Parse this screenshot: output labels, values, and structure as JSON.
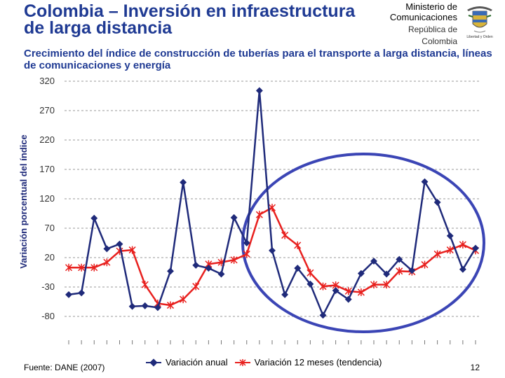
{
  "header": {
    "title": "Colombia – Inversión en infraestructura de larga distancia",
    "ministry_line1": "Ministerio de",
    "ministry_line2": "Comunicaciones",
    "ministry_sub1": "República de",
    "ministry_sub2": "Colombia",
    "crest_caption": "Libertad y Orden"
  },
  "footer": {
    "source": "Fuente: DANE (2007)",
    "page": "12"
  },
  "colors": {
    "annual": "#1f2a7a",
    "trend": "#e8201e",
    "ellipse": "#3b45b5",
    "title": "#1f3a93",
    "grid": "#9a9a9a"
  },
  "chart_data": {
    "type": "line",
    "title": "Crecimiento del índice de construcción de tuberías para el transporte a larga distancia, líneas de comunicaciones y energía",
    "ylabel": "Variación porcentual del índice",
    "xlabel": "",
    "ylim": [
      -80,
      320
    ],
    "yticks": [
      320,
      270,
      220,
      170,
      120,
      70,
      20,
      -30,
      -80
    ],
    "x_tick_labels_note": "x-axis labels illegible (rotated quarterly dates)",
    "series": [
      {
        "name": "Variación anual",
        "marker": "diamond",
        "values": [
          -43,
          -40,
          87,
          35,
          43,
          -63,
          -62,
          -65,
          -3,
          148,
          7,
          2,
          -8,
          88,
          45,
          304,
          32,
          -43,
          2,
          -25,
          -78,
          -36,
          -51,
          -7,
          14,
          -8,
          17,
          -2,
          149,
          114,
          57,
          0,
          36
        ]
      },
      {
        "name": "Variación 12 meses (tendencia)",
        "marker": "asterisk",
        "values": [
          3,
          3,
          3,
          12,
          31,
          33,
          -26,
          -58,
          -61,
          -51,
          -29,
          9,
          12,
          16,
          26,
          93,
          105,
          58,
          41,
          -6,
          -29,
          -27,
          -37,
          -39,
          -26,
          -26,
          -3,
          -4,
          8,
          26,
          33,
          42,
          32
        ]
      }
    ],
    "highlight": "ellipse around the most recent period of the series"
  }
}
